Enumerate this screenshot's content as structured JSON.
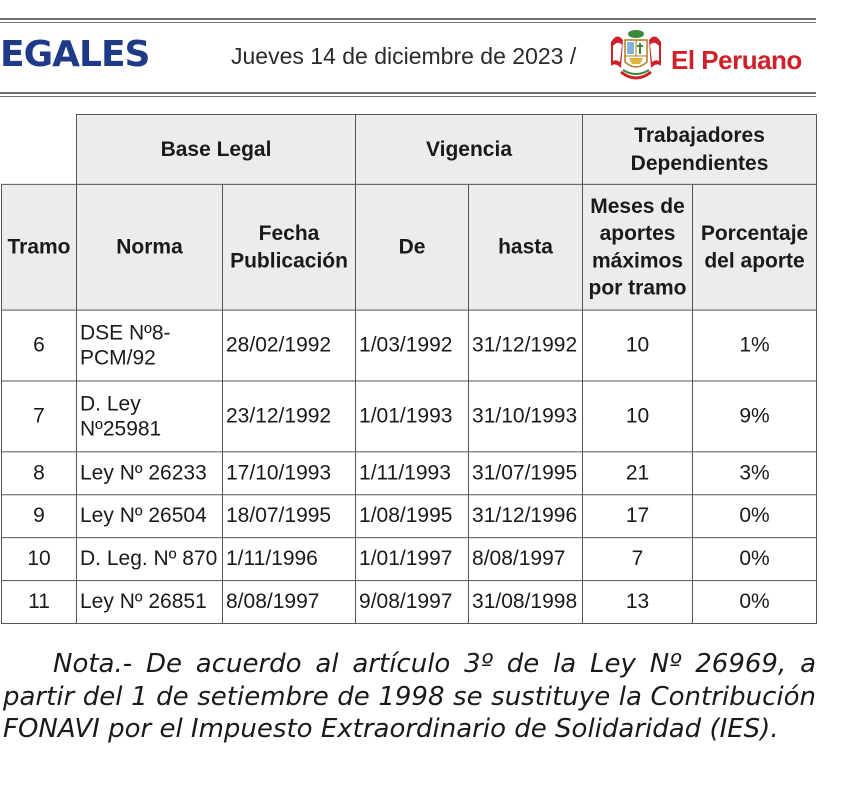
{
  "header": {
    "section_label": "EGALES",
    "date": "Jueves 14 de diciembre de 2023 /",
    "brand": "El Peruano"
  },
  "table": {
    "groups": {
      "base_legal": "Base Legal",
      "vigencia": "Vigencia",
      "trabajadores": "Trabajadores Dependientes"
    },
    "columns": {
      "tramo": "Tramo",
      "norma": "Norma",
      "fecha": "Fecha Publicación",
      "de": "De",
      "hasta": "hasta",
      "meses": "Meses de aportes máximos por tramo",
      "porcentaje": "Porcentaje del aporte"
    },
    "rows": [
      {
        "tramo": "6",
        "norma": "DSE Nº8-PCM/92",
        "fecha": "28/02/1992",
        "de": "1/03/1992",
        "hasta": "31/12/1992",
        "meses": "10",
        "porcentaje": "1%"
      },
      {
        "tramo": "7",
        "norma": "D. Ley Nº25981",
        "fecha": "23/12/1992",
        "de": "1/01/1993",
        "hasta": "31/10/1993",
        "meses": "10",
        "porcentaje": "9%"
      },
      {
        "tramo": "8",
        "norma": "Ley Nº 26233",
        "fecha": "17/10/1993",
        "de": "1/11/1993",
        "hasta": "31/07/1995",
        "meses": "21",
        "porcentaje": "3%"
      },
      {
        "tramo": "9",
        "norma": "Ley Nº 26504",
        "fecha": "18/07/1995",
        "de": "1/08/1995",
        "hasta": "31/12/1996",
        "meses": "17",
        "porcentaje": "0%"
      },
      {
        "tramo": "10",
        "norma": "D. Leg. Nº 870",
        "fecha": "1/11/1996",
        "de": "1/01/1997",
        "hasta": "8/08/1997",
        "meses": "7",
        "porcentaje": "0%"
      },
      {
        "tramo": "11",
        "norma": "Ley Nº 26851",
        "fecha": "8/08/1997",
        "de": "9/08/1997",
        "hasta": "31/08/1998",
        "meses": "13",
        "porcentaje": "0%"
      }
    ]
  },
  "note": "Nota.- De acuerdo al artículo 3º de la Ley Nº 26969, a partir del 1 de setiembre de 1998 se sustituye la Contribución FONAVI por el Impuesto Extraordinario de Solidaridad (IES).",
  "colors": {
    "section_blue": "#1f3b87",
    "brand_red": "#d0202a",
    "header_gray": "#ececec"
  }
}
